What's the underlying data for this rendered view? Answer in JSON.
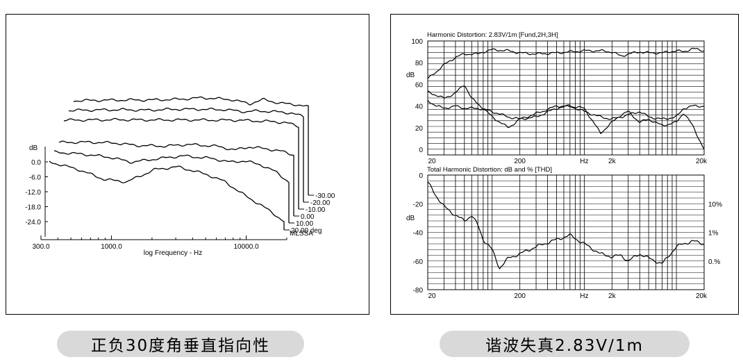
{
  "chart_data": [
    {
      "type": "line",
      "title": "",
      "xlabel": "log Frequency - Hz",
      "ylabel": "dB",
      "x_scale": "log",
      "xlim": [
        300,
        20000
      ],
      "x_ticks": [
        "300.0",
        "1000.0",
        "10000.0"
      ],
      "y_ticks": [
        "0.0",
        "-6.0",
        "-12.0",
        "-18.0",
        "-24.0"
      ],
      "stamp": "MLSSA",
      "angle_labels": [
        "-30.00",
        "-20.00",
        "-10.00",
        "0.00",
        "10.00",
        "20.00 deg"
      ],
      "grid": false,
      "series": [
        {
          "name": "-30.00",
          "x": [
            300,
            500,
            800,
            1200,
            2000,
            3000,
            5000,
            7000,
            9000,
            12000,
            16000,
            20000
          ],
          "y": [
            0,
            0.2,
            0.3,
            0.3,
            0.6,
            1.2,
            0.5,
            -1.2,
            0.5,
            -1.0,
            -1.5,
            -2.5
          ]
        },
        {
          "name": "-20.00",
          "x": [
            300,
            500,
            800,
            1200,
            2000,
            3000,
            5000,
            7000,
            9000,
            12000,
            16000,
            20000
          ],
          "y": [
            0,
            0.2,
            0.3,
            0.1,
            0.5,
            0.5,
            0.3,
            -0.5,
            -0.2,
            -0.5,
            -1.0,
            -2.5
          ]
        },
        {
          "name": "-10.00",
          "x": [
            300,
            500,
            800,
            1200,
            2000,
            3000,
            5000,
            7000,
            9000,
            12000,
            16000,
            20000
          ],
          "y": [
            0,
            0.1,
            0.2,
            0.1,
            0.1,
            0.1,
            0.0,
            0.0,
            -0.3,
            -0.5,
            -1.0,
            -2.5
          ]
        },
        {
          "name": "0.00",
          "x": [
            300,
            500,
            800,
            1200,
            2000,
            3000,
            5000,
            7000,
            9000,
            12000,
            16000,
            20000
          ],
          "y": [
            0,
            0.1,
            -0.2,
            -1.2,
            -1.5,
            -0.8,
            -1.5,
            -3.0,
            -1.8,
            -2.5,
            -3.5,
            -5.0
          ]
        },
        {
          "name": "10.00",
          "x": [
            300,
            500,
            800,
            1200,
            2000,
            3000,
            5000,
            7000,
            9000,
            12000,
            16000,
            20000
          ],
          "y": [
            0,
            -0.8,
            -2.0,
            -4.0,
            -2.5,
            -1.5,
            -2.5,
            -4.0,
            -3.5,
            -5.0,
            -8.0,
            -12.0
          ]
        },
        {
          "name": "20.00 deg",
          "x": [
            300,
            500,
            800,
            1200,
            2000,
            3000,
            5000,
            7000,
            9000,
            12000,
            16000,
            20000
          ],
          "y": [
            0,
            -3.0,
            -7.0,
            -8.0,
            -3.0,
            -2.0,
            -5.0,
            -8.0,
            -12.0,
            -16.0,
            -20.0,
            -24.0
          ]
        }
      ]
    },
    {
      "type": "line",
      "title": "Harmonic Distortion: 2.83V/1m [Fund,2H,3H]",
      "xlabel": "Hz",
      "ylabel": "dB",
      "x_scale": "log",
      "xlim": [
        20,
        20000
      ],
      "ylim": [
        -5,
        100
      ],
      "x_ticks": [
        "20",
        "200",
        "Hz",
        "2k",
        "20k"
      ],
      "y_ticks": [
        "100",
        "80",
        "60",
        "40",
        "20",
        "0"
      ],
      "grid": true,
      "series": [
        {
          "name": "Fund",
          "x": [
            20,
            25,
            30,
            40,
            50,
            60,
            70,
            80,
            100,
            150,
            200,
            300,
            500,
            700,
            1000,
            1500,
            2000,
            2500,
            3000,
            4000,
            5000,
            7000,
            10000,
            12000,
            15000,
            20000
          ],
          "y": [
            65,
            72,
            78,
            85,
            88,
            88,
            88,
            90,
            92,
            91,
            89,
            88,
            89,
            90,
            91,
            91,
            90,
            86,
            88,
            90,
            89,
            89,
            91,
            90,
            93,
            91
          ]
        },
        {
          "name": "2H",
          "x": [
            20,
            25,
            30,
            40,
            50,
            60,
            70,
            80,
            100,
            150,
            200,
            300,
            500,
            700,
            1000,
            1500,
            2000,
            2500,
            3000,
            4000,
            5000,
            7000,
            10000,
            12000,
            15000,
            20000
          ],
          "y": [
            53,
            50,
            47,
            52,
            60,
            47,
            42,
            38,
            30,
            20,
            28,
            33,
            40,
            40,
            35,
            30,
            28,
            30,
            32,
            35,
            30,
            28,
            30,
            38,
            40,
            40
          ]
        },
        {
          "name": "3H",
          "x": [
            20,
            25,
            30,
            40,
            50,
            60,
            70,
            80,
            100,
            150,
            200,
            300,
            500,
            700,
            1000,
            1500,
            2000,
            2500,
            3000,
            4000,
            5000,
            7000,
            10000,
            12000,
            15000,
            20000
          ],
          "y": [
            45,
            40,
            38,
            40,
            38,
            38,
            38,
            37,
            35,
            30,
            28,
            30,
            38,
            40,
            38,
            15,
            25,
            32,
            35,
            25,
            28,
            22,
            25,
            34,
            22,
            0
          ]
        }
      ]
    },
    {
      "type": "line",
      "title": "Total Harmonic Distortion: dB and % [THD]",
      "xlabel": "Hz",
      "ylabel": "dB",
      "x_scale": "log",
      "xlim": [
        20,
        20000
      ],
      "ylim": [
        -80,
        0
      ],
      "x_ticks": [
        "20",
        "200",
        "Hz",
        "2k",
        "20k"
      ],
      "y_ticks": [
        "0",
        "-20",
        "-40",
        "-60",
        "-80"
      ],
      "right_ticks": [
        "10%",
        "1%",
        "0.%"
      ],
      "grid": true,
      "series": [
        {
          "name": "THD",
          "x": [
            20,
            25,
            30,
            40,
            50,
            60,
            70,
            80,
            100,
            120,
            150,
            200,
            300,
            500,
            700,
            1000,
            1500,
            2000,
            2500,
            3000,
            4000,
            5000,
            7000,
            10000,
            12000,
            15000,
            20000
          ],
          "y": [
            -5,
            -15,
            -22,
            -28,
            -32,
            -28,
            -35,
            -45,
            -52,
            -65,
            -58,
            -55,
            -50,
            -45,
            -42,
            -48,
            -55,
            -57,
            -56,
            -60,
            -55,
            -58,
            -62,
            -50,
            -48,
            -46,
            -48
          ]
        }
      ]
    }
  ],
  "captions": {
    "left": "正负30度角垂直指向性",
    "right": "谐波失真2.83V/1m"
  }
}
